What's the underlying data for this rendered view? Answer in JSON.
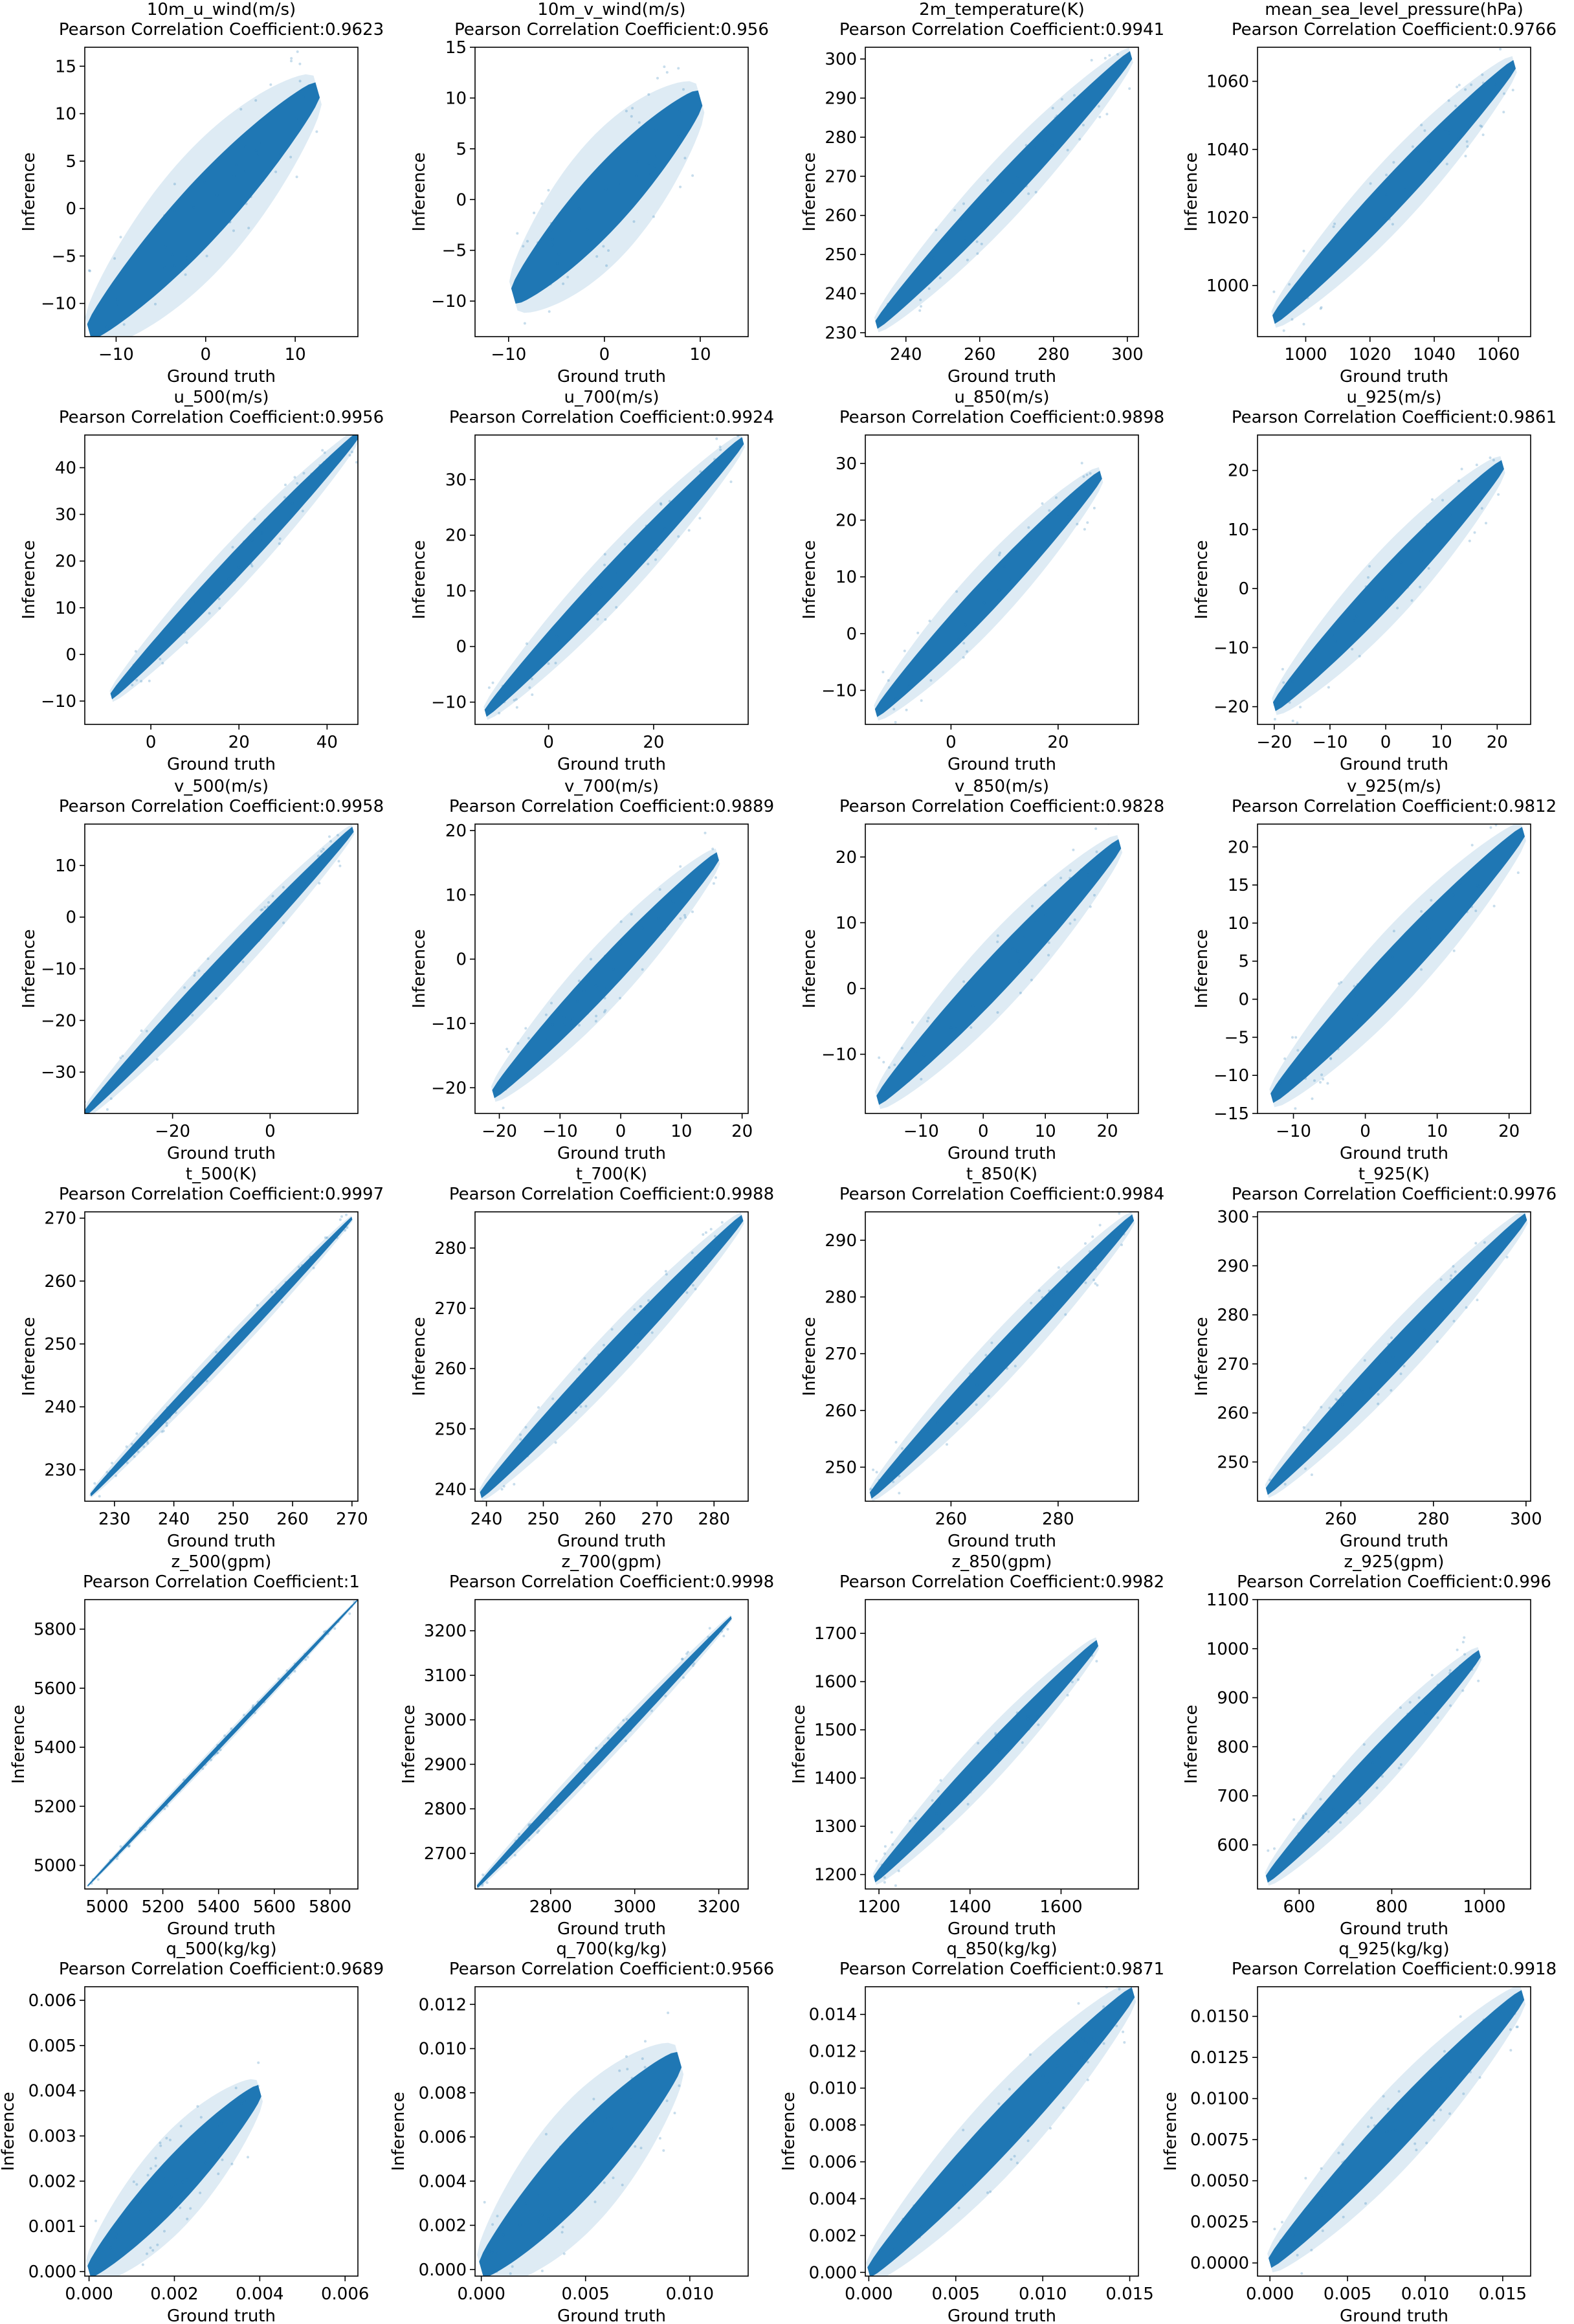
{
  "figure": {
    "color": "#1f77b4"
  },
  "chart_data": [
    {
      "type": "scatter",
      "title": "10m_u_wind(m/s)",
      "subtitle": "Pearson Correlation Coefficient:0.9623",
      "xlabel": "Ground truth",
      "ylabel": "Inference",
      "xlim": [
        -13.5,
        17
      ],
      "ylim": [
        -13.5,
        17
      ],
      "xticks": [
        -10,
        0,
        10
      ],
      "xtick_labels": [
        "−10",
        "0",
        "10"
      ],
      "yticks": [
        -10,
        -5,
        0,
        5,
        10,
        15
      ],
      "ytick_labels": [
        "−10",
        "−5",
        "0",
        "5",
        "10",
        "15"
      ],
      "data_range": [
        -13,
        12.5
      ],
      "spread": 3.2
    },
    {
      "type": "scatter",
      "title": "10m_v_wind(m/s)",
      "subtitle": "Pearson Correlation Coefficient:0.956",
      "xlabel": "Ground truth",
      "ylabel": "Inference",
      "xlim": [
        -13.5,
        15
      ],
      "ylim": [
        -13.5,
        15
      ],
      "xticks": [
        -10,
        0,
        10
      ],
      "xtick_labels": [
        "−10",
        "0",
        "10"
      ],
      "yticks": [
        -10,
        -5,
        0,
        5,
        10,
        15
      ],
      "ytick_labels": [
        "−10",
        "−5",
        "0",
        "5",
        "10",
        "15"
      ],
      "data_range": [
        -9.5,
        10
      ],
      "spread": 3
    },
    {
      "type": "scatter",
      "title": "2m_temperature(K)",
      "subtitle": "Pearson Correlation Coefficient:0.9941",
      "xlabel": "Ground truth",
      "ylabel": "Inference",
      "xlim": [
        229,
        303
      ],
      "ylim": [
        229,
        303
      ],
      "xticks": [
        240,
        260,
        280,
        300
      ],
      "xtick_labels": [
        "240",
        "260",
        "280",
        "300"
      ],
      "yticks": [
        230,
        240,
        250,
        260,
        270,
        280,
        290,
        300
      ],
      "ytick_labels": [
        "230",
        "240",
        "250",
        "260",
        "270",
        "280",
        "290",
        "300"
      ],
      "data_range": [
        232,
        301
      ],
      "spread": 4
    },
    {
      "type": "scatter",
      "title": "mean_sea_level_pressure(hPa)",
      "subtitle": "Pearson Correlation Coefficient:0.9766",
      "xlabel": "Ground truth",
      "ylabel": "Inference",
      "xlim": [
        985,
        1070
      ],
      "ylim": [
        985,
        1070
      ],
      "xticks": [
        1000,
        1020,
        1040,
        1060
      ],
      "xtick_labels": [
        "1000",
        "1020",
        "1040",
        "1060"
      ],
      "yticks": [
        1000,
        1020,
        1040,
        1060
      ],
      "ytick_labels": [
        "1000",
        "1020",
        "1040",
        "1060"
      ],
      "data_range": [
        990,
        1065
      ],
      "spread": 5
    },
    {
      "type": "scatter",
      "title": "u_500(m/s)",
      "subtitle": "Pearson Correlation Coefficient:0.9956",
      "xlabel": "Ground truth",
      "ylabel": "Inference",
      "xlim": [
        -15,
        47
      ],
      "ylim": [
        -15,
        47
      ],
      "xticks": [
        0,
        20,
        40
      ],
      "xtick_labels": [
        "0",
        "20",
        "40"
      ],
      "yticks": [
        -10,
        0,
        10,
        20,
        30,
        40
      ],
      "ytick_labels": [
        "−10",
        "0",
        "10",
        "20",
        "30",
        "40"
      ],
      "data_range": [
        -9,
        47
      ],
      "spread": 2.5
    },
    {
      "type": "scatter",
      "title": "u_700(m/s)",
      "subtitle": "Pearson Correlation Coefficient:0.9924",
      "xlabel": "Ground truth",
      "ylabel": "Inference",
      "xlim": [
        -14,
        38
      ],
      "ylim": [
        -14,
        38
      ],
      "xticks": [
        0,
        20
      ],
      "xtick_labels": [
        "0",
        "20"
      ],
      "yticks": [
        -10,
        0,
        10,
        20,
        30
      ],
      "ytick_labels": [
        "−10",
        "0",
        "10",
        "20",
        "30"
      ],
      "data_range": [
        -12,
        37
      ],
      "spread": 2.5
    },
    {
      "type": "scatter",
      "title": "u_850(m/s)",
      "subtitle": "Pearson Correlation Coefficient:0.9898",
      "xlabel": "Ground truth",
      "ylabel": "Inference",
      "xlim": [
        -16,
        35
      ],
      "ylim": [
        -16,
        35
      ],
      "xticks": [
        0,
        20
      ],
      "xtick_labels": [
        "0",
        "20"
      ],
      "yticks": [
        -10,
        0,
        10,
        20,
        30
      ],
      "ytick_labels": [
        "−10",
        "0",
        "10",
        "20",
        "30"
      ],
      "data_range": [
        -14,
        28
      ],
      "spread": 2.8
    },
    {
      "type": "scatter",
      "title": "u_925(m/s)",
      "subtitle": "Pearson Correlation Coefficient:0.9861",
      "xlabel": "Ground truth",
      "ylabel": "Inference",
      "xlim": [
        -23,
        26
      ],
      "ylim": [
        -23,
        26
      ],
      "xticks": [
        -20,
        -10,
        0,
        10,
        20
      ],
      "xtick_labels": [
        "−20",
        "−10",
        "0",
        "10",
        "20"
      ],
      "yticks": [
        -20,
        -10,
        0,
        10,
        20
      ],
      "ytick_labels": [
        "−20",
        "−10",
        "0",
        "10",
        "20"
      ],
      "data_range": [
        -20,
        21
      ],
      "spread": 3
    },
    {
      "type": "scatter",
      "title": "v_500(m/s)",
      "subtitle": "Pearson Correlation Coefficient:0.9958",
      "xlabel": "Ground truth",
      "ylabel": "Inference",
      "xlim": [
        -38,
        18
      ],
      "ylim": [
        -38,
        18
      ],
      "xticks": [
        -20,
        0
      ],
      "xtick_labels": [
        "−20",
        "0"
      ],
      "yticks": [
        -30,
        -20,
        -10,
        0,
        10
      ],
      "ytick_labels": [
        "−30",
        "−20",
        "−10",
        "0",
        "10"
      ],
      "data_range": [
        -38,
        17
      ],
      "spread": 2
    },
    {
      "type": "scatter",
      "title": "v_700(m/s)",
      "subtitle": "Pearson Correlation Coefficient:0.9889",
      "xlabel": "Ground truth",
      "ylabel": "Inference",
      "xlim": [
        -24,
        21
      ],
      "ylim": [
        -24,
        21
      ],
      "xticks": [
        -20,
        -10,
        0,
        10,
        20
      ],
      "xtick_labels": [
        "−20",
        "−10",
        "0",
        "10",
        "20"
      ],
      "yticks": [
        -20,
        -10,
        0,
        10,
        20
      ],
      "ytick_labels": [
        "−20",
        "−10",
        "0",
        "10",
        "20"
      ],
      "data_range": [
        -21,
        16
      ],
      "spread": 2.5
    },
    {
      "type": "scatter",
      "title": "v_850(m/s)",
      "subtitle": "Pearson Correlation Coefficient:0.9828",
      "xlabel": "Ground truth",
      "ylabel": "Inference",
      "xlim": [
        -19,
        25
      ],
      "ylim": [
        -19,
        25
      ],
      "xticks": [
        -10,
        0,
        10,
        20
      ],
      "xtick_labels": [
        "−10",
        "0",
        "10",
        "20"
      ],
      "yticks": [
        -10,
        0,
        10,
        20
      ],
      "ytick_labels": [
        "−10",
        "0",
        "10",
        "20"
      ],
      "data_range": [
        -17,
        22
      ],
      "spread": 2.8
    },
    {
      "type": "scatter",
      "title": "v_925(m/s)",
      "subtitle": "Pearson Correlation Coefficient:0.9812",
      "xlabel": "Ground truth",
      "ylabel": "Inference",
      "xlim": [
        -15,
        23
      ],
      "ylim": [
        -15,
        23
      ],
      "xticks": [
        -10,
        0,
        10,
        20
      ],
      "xtick_labels": [
        "−10",
        "0",
        "10",
        "20"
      ],
      "yticks": [
        -15,
        -10,
        -5,
        0,
        5,
        10,
        15,
        20
      ],
      "ytick_labels": [
        "−15",
        "−10",
        "−5",
        "0",
        "5",
        "10",
        "15",
        "20"
      ],
      "data_range": [
        -13,
        22
      ],
      "spread": 2.5
    },
    {
      "type": "scatter",
      "title": "t_500(K)",
      "subtitle": "Pearson Correlation Coefficient:0.9997",
      "xlabel": "Ground truth",
      "ylabel": "Inference",
      "xlim": [
        225,
        271
      ],
      "ylim": [
        225,
        271
      ],
      "xticks": [
        230,
        240,
        250,
        260,
        270
      ],
      "xtick_labels": [
        "230",
        "240",
        "250",
        "260",
        "270"
      ],
      "yticks": [
        230,
        240,
        250,
        260,
        270
      ],
      "ytick_labels": [
        "230",
        "240",
        "250",
        "260",
        "270"
      ],
      "data_range": [
        226,
        270
      ],
      "spread": 0.9
    },
    {
      "type": "scatter",
      "title": "t_700(K)",
      "subtitle": "Pearson Correlation Coefficient:0.9988",
      "xlabel": "Ground truth",
      "ylabel": "Inference",
      "xlim": [
        238,
        286
      ],
      "ylim": [
        238,
        286
      ],
      "xticks": [
        240,
        250,
        260,
        270,
        280
      ],
      "xtick_labels": [
        "240",
        "250",
        "260",
        "270",
        "280"
      ],
      "yticks": [
        240,
        250,
        260,
        270,
        280
      ],
      "ytick_labels": [
        "240",
        "250",
        "260",
        "270",
        "280"
      ],
      "data_range": [
        239,
        285
      ],
      "spread": 2
    },
    {
      "type": "scatter",
      "title": "t_850(K)",
      "subtitle": "Pearson Correlation Coefficient:0.9984",
      "xlabel": "Ground truth",
      "ylabel": "Inference",
      "xlim": [
        244,
        295
      ],
      "ylim": [
        244,
        295
      ],
      "xticks": [
        260,
        280
      ],
      "xtick_labels": [
        "260",
        "280"
      ],
      "yticks": [
        250,
        260,
        270,
        280,
        290
      ],
      "ytick_labels": [
        "250",
        "260",
        "270",
        "280",
        "290"
      ],
      "data_range": [
        245,
        294
      ],
      "spread": 2.2
    },
    {
      "type": "scatter",
      "title": "t_925(K)",
      "subtitle": "Pearson Correlation Coefficient:0.9976",
      "xlabel": "Ground truth",
      "ylabel": "Inference",
      "xlim": [
        242,
        301
      ],
      "ylim": [
        242,
        301
      ],
      "xticks": [
        260,
        280,
        300
      ],
      "xtick_labels": [
        "260",
        "280",
        "300"
      ],
      "yticks": [
        250,
        260,
        270,
        280,
        290,
        300
      ],
      "ytick_labels": [
        "250",
        "260",
        "270",
        "280",
        "290",
        "300"
      ],
      "data_range": [
        244,
        300
      ],
      "spread": 2.8
    },
    {
      "type": "scatter",
      "title": "z_500(gpm)",
      "subtitle": "Pearson Correlation Coefficient:1",
      "xlabel": "Ground truth",
      "ylabel": "Inference",
      "xlim": [
        4920,
        5900
      ],
      "ylim": [
        4920,
        5900
      ],
      "xticks": [
        5000,
        5200,
        5400,
        5600,
        5800
      ],
      "xtick_labels": [
        "5000",
        "5200",
        "5400",
        "5600",
        "5800"
      ],
      "yticks": [
        5000,
        5200,
        5400,
        5600,
        5800
      ],
      "ytick_labels": [
        "5000",
        "5200",
        "5400",
        "5600",
        "5800"
      ],
      "data_range": [
        4930,
        5900
      ],
      "spread": 8
    },
    {
      "type": "scatter",
      "title": "z_700(gpm)",
      "subtitle": "Pearson Correlation Coefficient:0.9998",
      "xlabel": "Ground truth",
      "ylabel": "Inference",
      "xlim": [
        2620,
        3270
      ],
      "ylim": [
        2620,
        3270
      ],
      "xticks": [
        2800,
        3000,
        3200
      ],
      "xtick_labels": [
        "2800",
        "3000",
        "3200"
      ],
      "yticks": [
        2700,
        2800,
        2900,
        3000,
        3100,
        3200
      ],
      "ytick_labels": [
        "2700",
        "2800",
        "2900",
        "3000",
        "3100",
        "3200"
      ],
      "data_range": [
        2625,
        3230
      ],
      "spread": 12
    },
    {
      "type": "scatter",
      "title": "z_850(gpm)",
      "subtitle": "Pearson Correlation Coefficient:0.9982",
      "xlabel": "Ground truth",
      "ylabel": "Inference",
      "xlim": [
        1170,
        1770
      ],
      "ylim": [
        1170,
        1770
      ],
      "xticks": [
        1200,
        1400,
        1600
      ],
      "xtick_labels": [
        "1200",
        "1400",
        "1600"
      ],
      "yticks": [
        1200,
        1300,
        1400,
        1500,
        1600,
        1700
      ],
      "ytick_labels": [
        "1200",
        "1300",
        "1400",
        "1500",
        "1600",
        "1700"
      ],
      "data_range": [
        1190,
        1680
      ],
      "spread": 25
    },
    {
      "type": "scatter",
      "title": "z_925(gpm)",
      "subtitle": "Pearson Correlation Coefficient:0.996",
      "xlabel": "Ground truth",
      "ylabel": "Inference",
      "xlim": [
        510,
        1100
      ],
      "ylim": [
        510,
        1100
      ],
      "xticks": [
        600,
        800,
        1000
      ],
      "xtick_labels": [
        "600",
        "800",
        "1000"
      ],
      "yticks": [
        600,
        700,
        800,
        900,
        1000,
        1100
      ],
      "ytick_labels": [
        "600",
        "700",
        "800",
        "900",
        "1000",
        "1100"
      ],
      "data_range": [
        530,
        990
      ],
      "spread": 28
    },
    {
      "type": "scatter",
      "title": "q_500(kg/kg)",
      "subtitle": "Pearson Correlation Coefficient:0.9689",
      "xlabel": "Ground truth",
      "ylabel": "Inference",
      "xlim": [
        -0.0001,
        0.0063
      ],
      "ylim": [
        -0.0001,
        0.0063
      ],
      "xticks": [
        0,
        0.002,
        0.004,
        0.006
      ],
      "xtick_labels": [
        "0.000",
        "0.002",
        "0.004",
        "0.006"
      ],
      "yticks": [
        0,
        0.001,
        0.002,
        0.003,
        0.004,
        0.005,
        0.006
      ],
      "ytick_labels": [
        "0.000",
        "0.001",
        "0.002",
        "0.003",
        "0.004",
        "0.005",
        "0.006"
      ],
      "data_range": [
        0,
        0.004
      ],
      "spread": 0.0005
    },
    {
      "type": "scatter",
      "title": "q_700(kg/kg)",
      "subtitle": "Pearson Correlation Coefficient:0.9566",
      "xlabel": "Ground truth",
      "ylabel": "Inference",
      "xlim": [
        -0.0003,
        0.0128
      ],
      "ylim": [
        -0.0003,
        0.0128
      ],
      "xticks": [
        0,
        0.005,
        0.01
      ],
      "xtick_labels": [
        "0.000",
        "0.005",
        "0.010"
      ],
      "yticks": [
        0,
        0.002,
        0.004,
        0.006,
        0.008,
        0.01,
        0.012
      ],
      "ytick_labels": [
        "0.000",
        "0.002",
        "0.004",
        "0.006",
        "0.008",
        "0.010",
        "0.012"
      ],
      "data_range": [
        0,
        0.0095
      ],
      "spread": 0.0014
    },
    {
      "type": "scatter",
      "title": "q_850(kg/kg)",
      "subtitle": "Pearson Correlation Coefficient:0.9871",
      "xlabel": "Ground truth",
      "ylabel": "Inference",
      "xlim": [
        -0.0002,
        0.0155
      ],
      "ylim": [
        -0.0002,
        0.0155
      ],
      "xticks": [
        0,
        0.005,
        0.01,
        0.015
      ],
      "xtick_labels": [
        "0.000",
        "0.005",
        "0.010",
        "0.015"
      ],
      "yticks": [
        0,
        0.002,
        0.004,
        0.006,
        0.008,
        0.01,
        0.012,
        0.014
      ],
      "ytick_labels": [
        "0.000",
        "0.002",
        "0.004",
        "0.006",
        "0.008",
        "0.010",
        "0.012",
        "0.014"
      ],
      "data_range": [
        0,
        0.0152
      ],
      "spread": 0.0011
    },
    {
      "type": "scatter",
      "title": "q_925(kg/kg)",
      "subtitle": "Pearson Correlation Coefficient:0.9918",
      "xlabel": "Ground truth",
      "ylabel": "Inference",
      "xlim": [
        -0.0008,
        0.0168
      ],
      "ylim": [
        -0.0008,
        0.0168
      ],
      "xticks": [
        0,
        0.005,
        0.01,
        0.015
      ],
      "xtick_labels": [
        "0.000",
        "0.005",
        "0.010",
        "0.015"
      ],
      "yticks": [
        0,
        0.0025,
        0.005,
        0.0075,
        0.01,
        0.0125,
        0.015
      ],
      "ytick_labels": [
        "0.0000",
        "0.0025",
        "0.0050",
        "0.0075",
        "0.0100",
        "0.0125",
        "0.0150"
      ],
      "data_range": [
        0,
        0.0163
      ],
      "spread": 0.0012
    }
  ]
}
